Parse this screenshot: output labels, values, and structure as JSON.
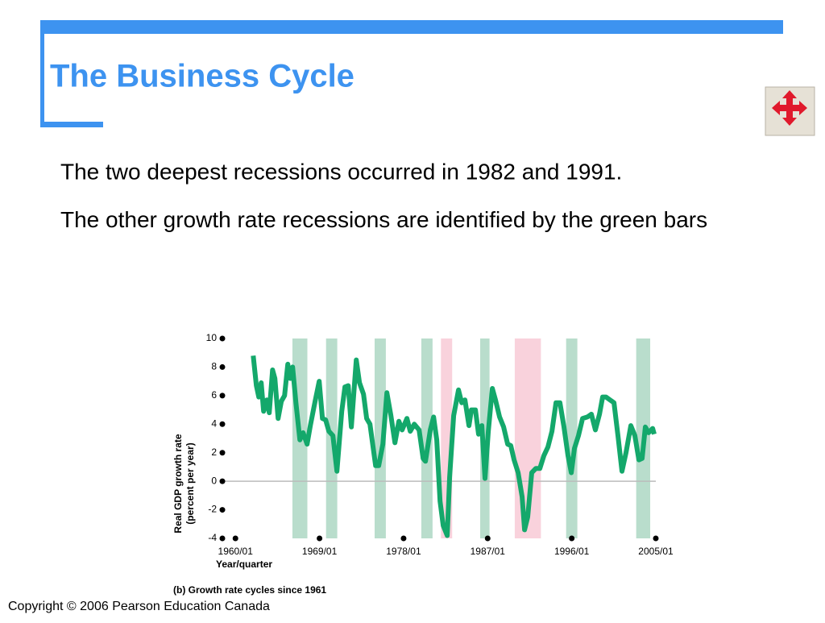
{
  "slide": {
    "title": "The Business Cycle",
    "bullets": [
      "The two deepest recessions occurred in 1982 and 1991.",
      "The other growth rate recessions are identified by the green bars"
    ],
    "copyright": "Copyright © 2006 Pearson Education Canada"
  },
  "chart_data": {
    "type": "line",
    "caption": "(b) Growth rate cycles since 1961",
    "xlabel": "Year/quarter",
    "ylabel": [
      "Real GDP growth rate",
      "(percent per year)"
    ],
    "color": "#14a86b",
    "x": [
      1961.9,
      1962.24,
      1962.5,
      1962.76,
      1963.02,
      1963.36,
      1963.62,
      1963.97,
      1964.22,
      1964.57,
      1964.91,
      1965.26,
      1965.6,
      1965.86,
      1966.12,
      1966.47,
      1966.9,
      1967.24,
      1967.67,
      1968.02,
      1968.53,
      1968.97,
      1969.31,
      1969.66,
      1970.0,
      1970.43,
      1970.86,
      1971.38,
      1971.72,
      1972.07,
      1972.41,
      1972.93,
      1973.28,
      1973.71,
      1974.05,
      1974.4,
      1975.0,
      1975.34,
      1975.78,
      1976.21,
      1976.64,
      1977.07,
      1977.5,
      1977.84,
      1978.36,
      1978.71,
      1979.14,
      1979.66,
      1980.09,
      1980.34,
      1980.86,
      1981.21,
      1981.55,
      1981.9,
      1982.24,
      1982.67,
      1982.93,
      1983.36,
      1983.88,
      1984.22,
      1984.57,
      1985.0,
      1985.26,
      1985.69,
      1986.03,
      1986.38,
      1986.72,
      1987.07,
      1987.5,
      1987.84,
      1988.28,
      1988.71,
      1989.14,
      1989.48,
      1989.83,
      1990.26,
      1990.69,
      1990.95,
      1991.29,
      1991.72,
      1992.16,
      1992.59,
      1993.02,
      1993.45,
      1993.88,
      1994.31,
      1994.74,
      1995.17,
      1995.6,
      1995.95,
      1996.29,
      1996.72,
      1997.16,
      1997.67,
      1998.1,
      1998.53,
      1998.97,
      1999.31,
      1999.66,
      2000.09,
      2000.52,
      2000.95,
      2001.38,
      2001.81,
      2002.33,
      2002.76,
      2003.19,
      2003.53,
      2003.88,
      2004.22,
      2004.66,
      2004.83
    ],
    "values": [
      8.8,
      6.7,
      5.9,
      6.9,
      4.9,
      5.7,
      4.8,
      7.8,
      7.2,
      4.4,
      5.6,
      6.0,
      8.2,
      7.2,
      8.0,
      5.5,
      2.9,
      3.4,
      2.6,
      3.9,
      5.6,
      7.0,
      4.4,
      4.3,
      3.5,
      3.2,
      0.7,
      4.9,
      6.6,
      6.7,
      3.8,
      8.5,
      6.9,
      6.1,
      4.4,
      4.0,
      1.1,
      1.1,
      2.6,
      6.2,
      4.6,
      2.7,
      4.2,
      3.6,
      4.4,
      3.5,
      4.0,
      3.6,
      1.6,
      1.4,
      3.6,
      4.5,
      2.9,
      -1.4,
      -3.1,
      -3.8,
      0.3,
      4.6,
      6.4,
      5.5,
      5.7,
      3.9,
      5.0,
      5.0,
      3.3,
      3.9,
      0.2,
      3.5,
      6.5,
      5.7,
      4.5,
      3.8,
      2.6,
      2.5,
      1.5,
      0.6,
      -1.1,
      -3.4,
      -2.5,
      0.6,
      0.9,
      0.9,
      1.8,
      2.4,
      3.5,
      5.5,
      5.5,
      3.8,
      1.8,
      0.6,
      2.3,
      3.2,
      4.4,
      4.5,
      4.7,
      3.6,
      4.7,
      5.9,
      5.9,
      5.7,
      5.5,
      3.2,
      0.7,
      2.0,
      3.9,
      3.2,
      1.5,
      1.6,
      3.8,
      3.4,
      3.7,
      3.3
    ],
    "bands": [
      {
        "start": 1966.1,
        "end": 1967.7,
        "color": "#b9ddcc"
      },
      {
        "start": 1969.7,
        "end": 1970.9,
        "color": "#b9ddcc"
      },
      {
        "start": 1974.9,
        "end": 1976.1,
        "color": "#b9ddcc"
      },
      {
        "start": 1979.9,
        "end": 1981.1,
        "color": "#b9ddcc"
      },
      {
        "start": 1982.0,
        "end": 1983.2,
        "color": "#f9d2dc"
      },
      {
        "start": 1986.2,
        "end": 1987.2,
        "color": "#b9ddcc"
      },
      {
        "start": 1989.9,
        "end": 1992.7,
        "color": "#f9d2dc"
      },
      {
        "start": 1995.4,
        "end": 1996.6,
        "color": "#b9ddcc"
      },
      {
        "start": 2002.9,
        "end": 2004.4,
        "color": "#b9ddcc"
      }
    ],
    "xlim": [
      1958.6,
      2005
    ],
    "ylim": [
      -4,
      10
    ],
    "xticks": [
      {
        "value": 1960,
        "label": "1960/01"
      },
      {
        "value": 1969,
        "label": "1969/01"
      },
      {
        "value": 1978,
        "label": "1978/01"
      },
      {
        "value": 1987,
        "label": "1987/01"
      },
      {
        "value": 1996,
        "label": "1996/01"
      },
      {
        "value": 2005,
        "label": "2005/01"
      }
    ],
    "yticks": [
      -4,
      -2,
      0,
      2,
      4,
      6,
      8,
      10
    ]
  }
}
